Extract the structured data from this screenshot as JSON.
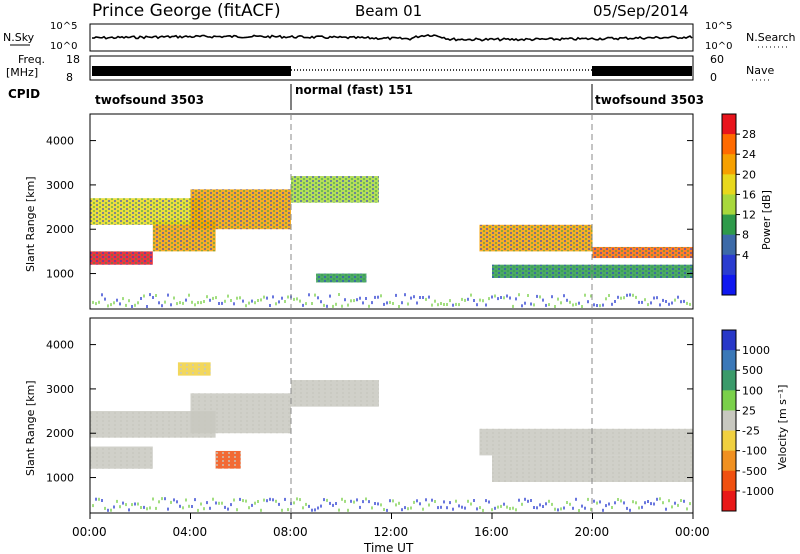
{
  "header": {
    "title": "Prince George (fitACF)",
    "beam": "Beam 01",
    "date": "05/Sep/2014"
  },
  "noise_panel": {
    "left_label": "N.Sky",
    "right_label": "N.Search",
    "left_ticks": [
      "10^5",
      "10^0"
    ],
    "right_ticks": [
      "10^5",
      "10^0"
    ]
  },
  "freq_panel": {
    "left_label_1": "Freq.",
    "left_label_2": "[MHz]",
    "right_label": "Nave",
    "left_ticks": [
      "18",
      "8"
    ],
    "right_ticks": [
      "60",
      "0"
    ]
  },
  "cpid": {
    "label": "CPID",
    "segments": [
      {
        "name": "twofsound 3503",
        "start_hour": 0,
        "end_hour": 8
      },
      {
        "name": "normal (fast) 151",
        "start_hour": 8,
        "end_hour": 20
      },
      {
        "name": "twofsound 3503",
        "start_hour": 20,
        "end_hour": 24
      }
    ]
  },
  "power_colorbar": {
    "label": "Power [dB]",
    "ticks": [
      "28",
      "24",
      "20",
      "16",
      "12",
      "8",
      "4"
    ],
    "colors": [
      "#e8141c",
      "#ff6a00",
      "#f6a000",
      "#e8d81c",
      "#a8d83c",
      "#2e9a4a",
      "#3c6aa8",
      "#2a3cd0",
      "#1018f0"
    ]
  },
  "velocity_colorbar": {
    "label": "Velocity [m s⁻¹]",
    "ticks": [
      "1000",
      "500",
      "100",
      "25",
      "-25",
      "-100",
      "-500",
      "-1000"
    ],
    "colors": [
      "#2838c8",
      "#3a78b8",
      "#3a9a6a",
      "#7ad04a",
      "#c8c8c0",
      "#f0d040",
      "#f09020",
      "#f05010",
      "#e81818"
    ]
  },
  "chart_data": [
    {
      "type": "heatmap",
      "title": "Power",
      "xlabel": "Time UT",
      "ylabel": "Slant Range [km]",
      "xlim": [
        0,
        24
      ],
      "ylim": [
        200,
        4600
      ],
      "x_ticks": [
        "00:00",
        "04:00",
        "08:00",
        "12:00",
        "16:00",
        "20:00",
        "00:00"
      ],
      "y_ticks": [
        "1000",
        "2000",
        "3000",
        "4000"
      ],
      "bands": [
        {
          "hour_start": 0.0,
          "hour_end": 2.5,
          "range_low": 1200,
          "range_high": 1500,
          "power_db": 28
        },
        {
          "hour_start": 2.5,
          "hour_end": 5.0,
          "range_low": 1500,
          "range_high": 2200,
          "power_db": 20
        },
        {
          "hour_start": 0.0,
          "hour_end": 4.5,
          "range_low": 2100,
          "range_high": 2700,
          "power_db": 16
        },
        {
          "hour_start": 4.0,
          "hour_end": 8.0,
          "range_low": 2000,
          "range_high": 2900,
          "power_db": 20
        },
        {
          "hour_start": 8.0,
          "hour_end": 11.5,
          "range_low": 2600,
          "range_high": 3200,
          "power_db": 12
        },
        {
          "hour_start": 9.0,
          "hour_end": 11.0,
          "range_low": 800,
          "range_high": 1000,
          "power_db": 8
        },
        {
          "hour_start": 15.5,
          "hour_end": 20.0,
          "range_low": 1500,
          "range_high": 2100,
          "power_db": 20
        },
        {
          "hour_start": 20.0,
          "hour_end": 24.0,
          "range_low": 1350,
          "range_high": 1600,
          "power_db": 24
        },
        {
          "hour_start": 16.0,
          "hour_end": 24.0,
          "range_low": 900,
          "range_high": 1200,
          "power_db": 8
        }
      ]
    },
    {
      "type": "heatmap",
      "title": "Velocity",
      "xlabel": "Time UT",
      "ylabel": "Slant Range [km]",
      "xlim": [
        0,
        24
      ],
      "ylim": [
        200,
        4600
      ],
      "x_ticks": [
        "00:00",
        "04:00",
        "08:00",
        "12:00",
        "16:00",
        "20:00",
        "00:00"
      ],
      "y_ticks": [
        "1000",
        "2000",
        "3000",
        "4000"
      ],
      "bands": [
        {
          "hour_start": 0.0,
          "hour_end": 2.5,
          "range_low": 1200,
          "range_high": 1700,
          "velocity": 0
        },
        {
          "hour_start": 0.0,
          "hour_end": 5.0,
          "range_low": 1900,
          "range_high": 2500,
          "velocity": 0
        },
        {
          "hour_start": 4.0,
          "hour_end": 8.0,
          "range_low": 2000,
          "range_high": 2900,
          "velocity": 0
        },
        {
          "hour_start": 8.0,
          "hour_end": 11.5,
          "range_low": 2600,
          "range_high": 3200,
          "velocity": 0
        },
        {
          "hour_start": 5.0,
          "hour_end": 6.0,
          "range_low": 1200,
          "range_high": 1600,
          "velocity": -1000
        },
        {
          "hour_start": 3.5,
          "hour_end": 4.8,
          "range_low": 3300,
          "range_high": 3600,
          "velocity": -100
        },
        {
          "hour_start": 15.5,
          "hour_end": 24.0,
          "range_low": 1500,
          "range_high": 2100,
          "velocity": 0
        },
        {
          "hour_start": 16.0,
          "hour_end": 24.0,
          "range_low": 900,
          "range_high": 1500,
          "velocity": 0
        }
      ]
    }
  ]
}
